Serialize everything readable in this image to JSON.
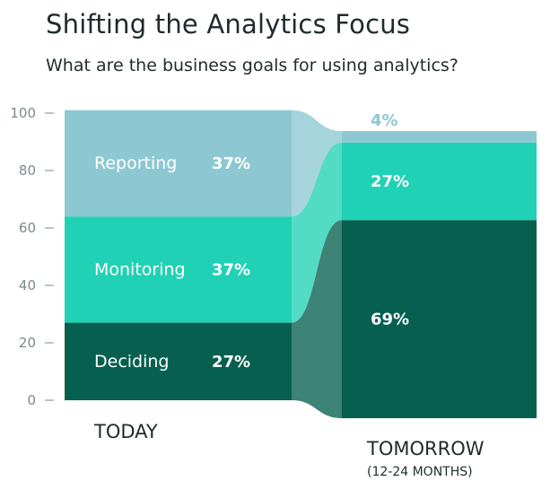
{
  "header": {
    "title": "Shifting the Analytics Focus",
    "subtitle": "What are the business goals for using analytics?"
  },
  "chart_data": {
    "type": "bar",
    "stacked": true,
    "ylim": [
      0,
      100
    ],
    "yticks": [
      0,
      20,
      40,
      60,
      80,
      100
    ],
    "categories": [
      "TODAY",
      "TOMORROW"
    ],
    "category_sublabels": [
      "",
      "(12-24 MONTHS)"
    ],
    "series": [
      {
        "name": "Deciding",
        "values": [
          27,
          69
        ],
        "labels": [
          "27%",
          "69%"
        ],
        "color": "#07604f"
      },
      {
        "name": "Monitoring",
        "values": [
          37,
          27
        ],
        "labels": [
          "37%",
          "27%"
        ],
        "color": "#21d1b5"
      },
      {
        "name": "Reporting",
        "values": [
          37,
          4
        ],
        "labels": [
          "37%",
          "4%"
        ],
        "color": "#8dc8d2"
      }
    ],
    "colors": {
      "text": "#1f2b2b",
      "axis": "#7a8a8a"
    }
  }
}
